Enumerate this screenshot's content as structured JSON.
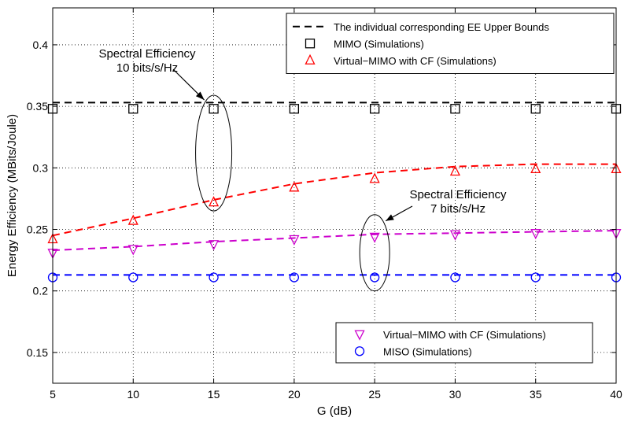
{
  "chart_data": {
    "type": "line",
    "xlabel": "G (dB)",
    "ylabel": "Energy Efficiency  (MBits/Joule)",
    "xlim": [
      5,
      40
    ],
    "ylim": [
      0.125,
      0.43
    ],
    "xticks": [
      5,
      10,
      15,
      20,
      25,
      30,
      35,
      40
    ],
    "yticks": [
      0.15,
      0.2,
      0.25,
      0.3,
      0.35,
      0.4
    ],
    "xtick_labels": [
      "5",
      "10",
      "15",
      "20",
      "25",
      "30",
      "35",
      "40"
    ],
    "ytick_labels": [
      "0.15",
      "0.2",
      "0.25",
      "0.3",
      "0.35",
      "0.4"
    ],
    "grid": true,
    "colors": {
      "black": "#000000",
      "red": "#ff0000",
      "magenta": "#cc00cc",
      "blue": "#0000ff"
    },
    "series": [
      {
        "name": "The individual corresponding EE Upper Bounds",
        "style": "dashed",
        "color": "#000000",
        "x": [
          5,
          40
        ],
        "y": [
          0.353,
          0.353
        ]
      },
      {
        "style": "dashed",
        "color": "#ff0000",
        "x": [
          5,
          10,
          15,
          20,
          25,
          30,
          35,
          40
        ],
        "y": [
          0.245,
          0.259,
          0.274,
          0.287,
          0.296,
          0.301,
          0.303,
          0.303
        ]
      },
      {
        "style": "dashed",
        "color": "#cc00cc",
        "x": [
          5,
          10,
          15,
          20,
          25,
          30,
          35,
          40
        ],
        "y": [
          0.233,
          0.236,
          0.24,
          0.243,
          0.246,
          0.247,
          0.248,
          0.249
        ]
      },
      {
        "style": "dashed",
        "color": "#0000ff",
        "x": [
          5,
          40
        ],
        "y": [
          0.213,
          0.213
        ]
      },
      {
        "name": "MIMO (Simulations)",
        "marker": "square",
        "color": "#000000",
        "x": [
          5,
          10,
          15,
          20,
          25,
          30,
          35,
          40
        ],
        "y": [
          0.348,
          0.348,
          0.348,
          0.348,
          0.348,
          0.348,
          0.348,
          0.348
        ]
      },
      {
        "name": "Virtual−MIMO with CF (Simulations)",
        "marker": "triangle-up",
        "color": "#ff0000",
        "x": [
          5,
          10,
          15,
          20,
          25,
          30,
          35,
          40
        ],
        "y": [
          0.242,
          0.257,
          0.272,
          0.284,
          0.291,
          0.297,
          0.299,
          0.299
        ]
      },
      {
        "name": "Virtual−MIMO with CF (Simulations)",
        "marker": "triangle-down",
        "color": "#cc00cc",
        "x": [
          5,
          10,
          15,
          20,
          25,
          30,
          35,
          40
        ],
        "y": [
          0.231,
          0.234,
          0.238,
          0.242,
          0.244,
          0.246,
          0.247,
          0.247
        ]
      },
      {
        "name": "MISO (Simulations)",
        "marker": "circle",
        "color": "#0000ff",
        "x": [
          5,
          10,
          15,
          20,
          25,
          30,
          35,
          40
        ],
        "y": [
          0.211,
          0.211,
          0.211,
          0.211,
          0.211,
          0.211,
          0.211,
          0.211
        ]
      }
    ],
    "legend_top": {
      "placement": "top-right",
      "entries": [
        {
          "label": "The individual corresponding EE Upper Bounds",
          "marker": "dashed-line",
          "color": "#000000"
        },
        {
          "label": "MIMO (Simulations)",
          "marker": "square",
          "color": "#000000"
        },
        {
          "label": "Virtual−MIMO with CF (Simulations)",
          "marker": "triangle-up",
          "color": "#ff0000"
        }
      ]
    },
    "legend_bottom": {
      "placement": "bottom-right",
      "entries": [
        {
          "label": "Virtual−MIMO with CF (Simulations)",
          "marker": "triangle-down",
          "color": "#cc00cc"
        },
        {
          "label": "MISO (Simulations)",
          "marker": "circle",
          "color": "#0000ff"
        }
      ]
    },
    "annotations": [
      {
        "lines": [
          "Spectral Efficiency",
          "10 bits/s/Hz"
        ],
        "target_x": 15,
        "target_y_range": [
          0.265,
          0.359
        ]
      },
      {
        "lines": [
          "Spectral Efficiency",
          "7 bits/s/Hz"
        ],
        "target_x": 25,
        "target_y_range": [
          0.2,
          0.262
        ]
      }
    ]
  }
}
